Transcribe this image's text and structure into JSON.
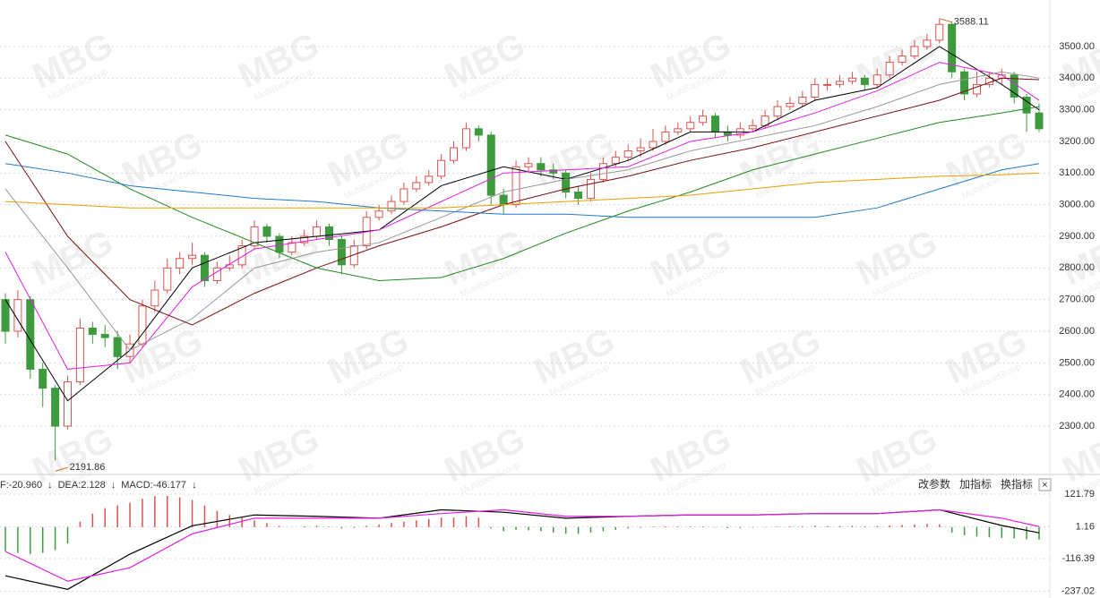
{
  "watermark": [
    "MBG",
    "MultiBankGroup"
  ],
  "chart_data": [
    {
      "type": "candlestick",
      "open": [
        2700,
        2600,
        2700,
        2480,
        2420,
        2300,
        2440,
        2610,
        2590,
        2580,
        2520,
        2560,
        2680,
        2730,
        2800,
        2830,
        2840,
        2760,
        2800,
        2810,
        2870,
        2930,
        2900,
        2850,
        2880,
        2900,
        2930,
        2890,
        2810,
        2870,
        2960,
        2980,
        3010,
        3050,
        3070,
        3090,
        3140,
        3180,
        3240,
        3220,
        3030,
        3000,
        3120,
        3130,
        3110,
        3100,
        3040,
        3020,
        3080,
        3130,
        3150,
        3170,
        3180,
        3200,
        3230,
        3240,
        3260,
        3280,
        3230,
        3220,
        3240,
        3250,
        3280,
        3310,
        3320,
        3340,
        3380,
        3380,
        3390,
        3400,
        3380,
        3410,
        3450,
        3470,
        3500,
        3520,
        3570,
        3420,
        3350,
        3380,
        3400,
        3410,
        3340,
        3290
      ],
      "high": [
        2720,
        2730,
        2710,
        2500,
        2430,
        2460,
        2640,
        2630,
        2620,
        2600,
        2590,
        2700,
        2760,
        2830,
        2850,
        2880,
        2850,
        2820,
        2840,
        2890,
        2950,
        2940,
        2910,
        2900,
        2920,
        2950,
        2940,
        2900,
        2890,
        2980,
        3000,
        3030,
        3070,
        3090,
        3110,
        3160,
        3200,
        3260,
        3250,
        3230,
        3050,
        3140,
        3150,
        3150,
        3130,
        3110,
        3060,
        3100,
        3150,
        3170,
        3190,
        3210,
        3240,
        3250,
        3260,
        3280,
        3300,
        3290,
        3250,
        3260,
        3270,
        3300,
        3330,
        3340,
        3360,
        3400,
        3400,
        3410,
        3420,
        3410,
        3430,
        3470,
        3490,
        3520,
        3540,
        3588.11,
        3580,
        3430,
        3420,
        3420,
        3430,
        3420,
        3350,
        3320
      ],
      "low": [
        2560,
        2580,
        2450,
        2360,
        2191.86,
        2290,
        2430,
        2560,
        2550,
        2480,
        2500,
        2550,
        2660,
        2720,
        2780,
        2810,
        2740,
        2750,
        2790,
        2800,
        2860,
        2880,
        2830,
        2840,
        2870,
        2890,
        2870,
        2780,
        2800,
        2860,
        2950,
        2970,
        3000,
        3040,
        3060,
        3080,
        3130,
        3170,
        3200,
        3000,
        2970,
        2990,
        3100,
        3090,
        3080,
        3020,
        3000,
        3010,
        3070,
        3120,
        3140,
        3150,
        3170,
        3190,
        3220,
        3230,
        3250,
        3210,
        3200,
        3210,
        3230,
        3240,
        3270,
        3300,
        3310,
        3330,
        3360,
        3370,
        3380,
        3360,
        3370,
        3400,
        3440,
        3460,
        3490,
        3510,
        3400,
        3330,
        3340,
        3370,
        3380,
        3320,
        3230,
        3230
      ],
      "close": [
        2600,
        2700,
        2480,
        2420,
        2300,
        2440,
        2610,
        2590,
        2580,
        2520,
        2560,
        2680,
        2730,
        2800,
        2830,
        2840,
        2760,
        2800,
        2810,
        2870,
        2930,
        2900,
        2850,
        2880,
        2900,
        2930,
        2890,
        2810,
        2870,
        2960,
        2980,
        3010,
        3050,
        3070,
        3090,
        3140,
        3180,
        3240,
        3220,
        3030,
        3000,
        3120,
        3130,
        3110,
        3100,
        3040,
        3020,
        3080,
        3130,
        3150,
        3170,
        3180,
        3200,
        3230,
        3240,
        3260,
        3280,
        3230,
        3220,
        3240,
        3250,
        3280,
        3310,
        3320,
        3340,
        3380,
        3380,
        3390,
        3400,
        3380,
        3410,
        3450,
        3470,
        3500,
        3520,
        3570,
        3420,
        3350,
        3380,
        3400,
        3410,
        3340,
        3290,
        3240
      ],
      "color_up": "#d9534f",
      "color_down": "#3d9a3d",
      "line_x": [
        0,
        5,
        10,
        15,
        20,
        25,
        30,
        35,
        40,
        45,
        50,
        55,
        60,
        65,
        70,
        75,
        80,
        83
      ],
      "lines": [
        {
          "color": "#000000",
          "values": [
            2700,
            2380,
            2540,
            2800,
            2880,
            2900,
            2920,
            3060,
            3120,
            3080,
            3140,
            3230,
            3230,
            3330,
            3370,
            3500,
            3380,
            3300
          ]
        },
        {
          "color": "#e020e0",
          "values": [
            2850,
            2480,
            2500,
            2740,
            2860,
            2890,
            2920,
            3010,
            3100,
            3110,
            3120,
            3200,
            3230,
            3290,
            3360,
            3450,
            3410,
            3330
          ]
        },
        {
          "color": "#999999",
          "values": [
            3050,
            2800,
            2540,
            2640,
            2800,
            2850,
            2880,
            2960,
            3040,
            3080,
            3110,
            3170,
            3210,
            3250,
            3310,
            3380,
            3420,
            3400
          ]
        },
        {
          "color": "#7a1010",
          "values": [
            3200,
            2900,
            2700,
            2620,
            2720,
            2800,
            2870,
            2930,
            3000,
            3050,
            3090,
            3140,
            3180,
            3230,
            3280,
            3330,
            3400,
            3395
          ]
        },
        {
          "color": "#1f8a1f",
          "values": [
            3220,
            3160,
            3050,
            2960,
            2880,
            2800,
            2760,
            2770,
            2830,
            2910,
            2980,
            3040,
            3110,
            3160,
            3210,
            3260,
            3290,
            3310
          ]
        },
        {
          "color": "#1e78c8",
          "values": [
            3130,
            3100,
            3060,
            3040,
            3020,
            3010,
            2990,
            2980,
            2970,
            2970,
            2960,
            2960,
            2960,
            2960,
            2990,
            3050,
            3110,
            3130
          ]
        },
        {
          "color": "#e8a000",
          "values": [
            3010,
            3000,
            2990,
            2990,
            2990,
            2990,
            2990,
            2990,
            3000,
            3010,
            3020,
            3030,
            3050,
            3070,
            3080,
            3090,
            3095,
            3100
          ]
        }
      ],
      "mark_extremes": true,
      "extreme_color": "#d2691e",
      "ylim": [
        2153,
        3647
      ],
      "yticks": [
        {
          "value": 2300,
          "label": "2300.00"
        },
        {
          "value": 2400,
          "label": "2400.00"
        },
        {
          "value": 2500,
          "label": "2500.00"
        },
        {
          "value": 2600,
          "label": "2600.00"
        },
        {
          "value": 2700,
          "label": "2700.00"
        },
        {
          "value": 2800,
          "label": "2800.00"
        },
        {
          "value": 2900,
          "label": "2900.00"
        },
        {
          "value": 3000,
          "label": "3000.00"
        },
        {
          "value": 3100,
          "label": "3100.00"
        },
        {
          "value": 3200,
          "label": "3200.00"
        },
        {
          "value": 3300,
          "label": "3300.00"
        },
        {
          "value": 3400,
          "label": "3400.00"
        },
        {
          "value": 3500,
          "label": "3500.00"
        }
      ],
      "grid": true
    },
    {
      "type": "macd",
      "header": [
        {
          "text": "F:-20.960",
          "color": "#000000"
        },
        {
          "text": "↓",
          "color": "#000000"
        },
        {
          "text": "DEA:2.128",
          "color": "#e020e0"
        },
        {
          "text": "↓",
          "color": "#e020e0"
        },
        {
          "text": "MACD:-46.177",
          "color": "#888888"
        },
        {
          "text": "↓",
          "color": "#888888"
        }
      ],
      "buttons": [
        "改参数",
        "加指标",
        "换指标"
      ],
      "close": "×",
      "bars": [
        -90,
        -95,
        -100,
        -95,
        -85,
        -60,
        20,
        50,
        70,
        80,
        90,
        105,
        115,
        115,
        110,
        100,
        80,
        60,
        45,
        35,
        25,
        15,
        5,
        0,
        3,
        5,
        2,
        -5,
        -3,
        5,
        10,
        15,
        20,
        25,
        30,
        35,
        35,
        40,
        35,
        -5,
        -15,
        -10,
        -12,
        -15,
        -20,
        -25,
        -25,
        -20,
        -15,
        -10,
        -5,
        -3,
        2,
        3,
        3,
        2,
        3,
        -2,
        -4,
        -3,
        -2,
        -2,
        2,
        3,
        3,
        5,
        4,
        4,
        5,
        3,
        4,
        6,
        8,
        10,
        12,
        10,
        -20,
        -30,
        -35,
        -38,
        -40,
        -42,
        -45,
        -46.177
      ],
      "color_up": "#d9534f",
      "color_down": "#3d9a3d",
      "line_x": [
        0,
        5,
        10,
        15,
        20,
        25,
        30,
        35,
        40,
        45,
        50,
        55,
        60,
        65,
        70,
        75,
        80,
        83
      ],
      "lines": [
        {
          "color": "#000000",
          "values": [
            -180,
            -230,
            -100,
            5,
            45,
            40,
            33,
            64,
            55,
            33,
            40,
            45,
            45,
            50,
            50,
            64,
            6,
            -20.96
          ]
        },
        {
          "color": "#e020e0",
          "values": [
            -90,
            -200,
            -150,
            -25,
            33,
            33,
            33,
            50,
            64,
            40,
            40,
            45,
            45,
            50,
            50,
            64,
            33,
            2.128
          ]
        }
      ],
      "ylim": [
        -262,
        188
      ],
      "yticks": [
        121.79,
        1.16,
        -116.39,
        -237.02
      ],
      "grid": true
    }
  ]
}
